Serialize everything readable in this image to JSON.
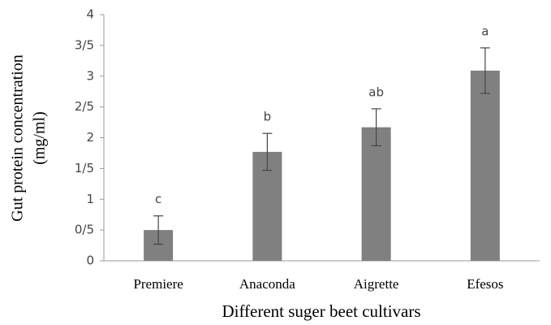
{
  "chart_data": {
    "type": "bar",
    "ylabel": [
      "Gut protein concentration",
      "(mg/ml)"
    ],
    "xlabel": "Different suger beet cultivars",
    "categories": [
      "Premiere",
      "Anaconda",
      "Aigrette",
      "Efesos"
    ],
    "values": [
      0.5,
      1.77,
      2.17,
      3.09
    ],
    "errors": [
      0.23,
      0.3,
      0.3,
      0.37
    ],
    "annotations": [
      "c",
      "b",
      "ab",
      "a"
    ],
    "color": "#808080",
    "ylim": [
      0,
      4
    ],
    "yticks": [
      0,
      {
        "value": 0.5,
        "label": "0/5"
      },
      1,
      {
        "value": 1.5,
        "label": "1/5"
      },
      2,
      {
        "value": 2.5,
        "label": "2/5"
      },
      3,
      {
        "value": 3.5,
        "label": "3/5"
      },
      4
    ],
    "grid": false
  }
}
